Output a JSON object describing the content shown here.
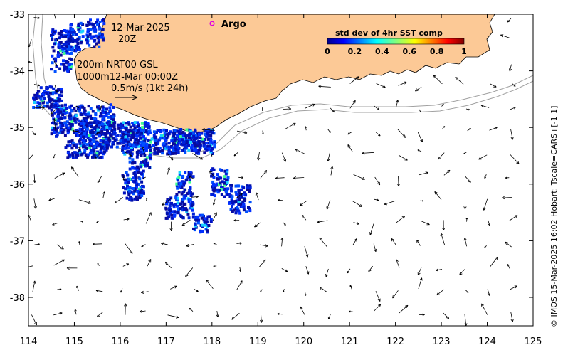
{
  "map": {
    "title_date": "12-Mar-2025",
    "title_hour": "20Z",
    "argo_label": "Argo",
    "isobaths_label": "200m  NRT00 GSL",
    "isobaths_label2": "1000m12-Mar 00:00Z",
    "scale_label": "0.5m/s (1kt 24h)",
    "side_credit": "© IMOS 15-Mar-2025 16:02 Hobart; Tscale=CARS+[-1 1]",
    "colors": {
      "land": "#fcc996",
      "ocean": "#ffffff",
      "arrow": "#000000",
      "argo_marker": "#e000e0"
    },
    "lon_ticks": [
      "114",
      "115",
      "116",
      "117",
      "118",
      "119",
      "120",
      "121",
      "122",
      "123",
      "124",
      "125"
    ],
    "lat_ticks": [
      "-33",
      "-34",
      "-35",
      "-36",
      "-37",
      "-38"
    ]
  },
  "colorbar": {
    "title": "std dev of 4hr SST comp",
    "tick_labels": [
      "0",
      "0.2",
      "0.4",
      "0.6",
      "0.8",
      "1"
    ],
    "colormap": "jet"
  }
}
